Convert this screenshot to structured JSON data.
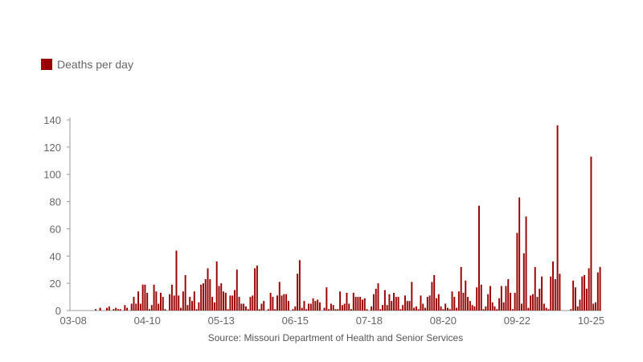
{
  "legend": {
    "label": "Deaths per day"
  },
  "source": "Source: Missouri Department of Health and Senior Services",
  "colors": {
    "bar": "#990000",
    "axis": "#999999",
    "text": "#666666"
  },
  "chart_data": {
    "type": "bar",
    "title": "",
    "xlabel": "",
    "ylabel": "",
    "x_tick_labels": [
      "03-08",
      "04-10",
      "05-13",
      "06-15",
      "07-18",
      "08-20",
      "09-22",
      "10-25"
    ],
    "y_ticks": [
      0,
      20,
      40,
      60,
      80,
      100,
      120,
      140
    ],
    "ylim": [
      0,
      140
    ],
    "grid": false,
    "legend_position": "top-left",
    "start_date": "03-08",
    "series": [
      {
        "name": "Deaths per day",
        "values": [
          0,
          0,
          0,
          0,
          0,
          0,
          0,
          0,
          0,
          0,
          0,
          1,
          0,
          2,
          0,
          0,
          2,
          3,
          0,
          1,
          2,
          1,
          1,
          0,
          4,
          2,
          0,
          5,
          10,
          5,
          14,
          5,
          19,
          19,
          13,
          1,
          4,
          19,
          14,
          5,
          13,
          10,
          1,
          0,
          12,
          19,
          11,
          44,
          11,
          2,
          14,
          26,
          4,
          10,
          7,
          14,
          1,
          6,
          19,
          20,
          23,
          31,
          23,
          10,
          6,
          36,
          18,
          20,
          14,
          13,
          1,
          11,
          11,
          15,
          30,
          10,
          5,
          5,
          3,
          1,
          10,
          11,
          31,
          33,
          1,
          5,
          7,
          0,
          1,
          13,
          10,
          1,
          11,
          21,
          11,
          12,
          12,
          7,
          0,
          1,
          3,
          27,
          37,
          2,
          7,
          1,
          5,
          5,
          9,
          7,
          8,
          6,
          0,
          2,
          17,
          1,
          5,
          4,
          1,
          1,
          14,
          4,
          5,
          13,
          5,
          1,
          13,
          10,
          10,
          10,
          8,
          9,
          1,
          0,
          3,
          12,
          16,
          20,
          1,
          4,
          15,
          4,
          12,
          7,
          13,
          10,
          10,
          1,
          4,
          11,
          7,
          7,
          21,
          2,
          3,
          1,
          11,
          5,
          2,
          10,
          11,
          21,
          26,
          9,
          12,
          3,
          1,
          5,
          2,
          1,
          14,
          10,
          2,
          14,
          32,
          13,
          22,
          10,
          7,
          4,
          3,
          17,
          77,
          19,
          1,
          3,
          12,
          18,
          6,
          3,
          1,
          9,
          18,
          6,
          18,
          23,
          13,
          1,
          13,
          57,
          83,
          5,
          42,
          69,
          2,
          11,
          12,
          32,
          10,
          16,
          25,
          5,
          2,
          1,
          25,
          36,
          23,
          136,
          27,
          0,
          0,
          0,
          0,
          1,
          22,
          17,
          3,
          8,
          25,
          26,
          16,
          31,
          113,
          5,
          6,
          28,
          32
        ]
      }
    ]
  }
}
